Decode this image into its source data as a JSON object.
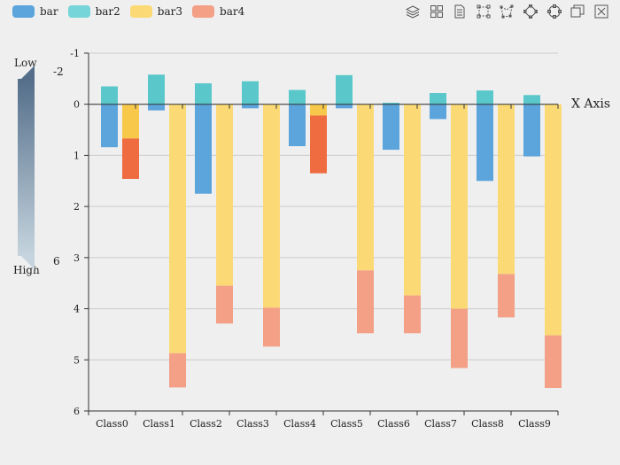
{
  "legend": [
    {
      "name": "bar",
      "color": "#5ba4dc"
    },
    {
      "name": "bar2",
      "color": "#76d5d8"
    },
    {
      "name": "bar3",
      "color": "#fbda75"
    },
    {
      "name": "bar4",
      "color": "#f3a087"
    }
  ],
  "toolbox": [
    "stack-icon",
    "tiled-icon",
    "data-view-icon",
    "rect-select-icon",
    "polygon-select-icon",
    "keep-select-icon",
    "clear-select-icon",
    "restore-icon",
    "close-icon"
  ],
  "visual_map": {
    "low_label": "Low",
    "high_label": "High",
    "min_text": "-2",
    "max_text": "6",
    "color_top": "#546e8a",
    "color_bottom": "#c5d4de"
  },
  "chart_data": {
    "type": "bar",
    "xlabel": "X Axis",
    "ylabel": "",
    "ylim": [
      -1,
      6
    ],
    "y_inverse": true,
    "categories": [
      "Class0",
      "Class1",
      "Class2",
      "Class3",
      "Class4",
      "Class5",
      "Class6",
      "Class7",
      "Class8",
      "Class9"
    ],
    "series": [
      {
        "name": "bar",
        "stack": "one",
        "color": "#5ba4dc",
        "values": [
          0.84,
          0.12,
          1.75,
          0.08,
          0.82,
          0.08,
          0.89,
          0.29,
          1.5,
          1.02
        ]
      },
      {
        "name": "bar2",
        "stack": "one",
        "color": "#5ac8cb",
        "values": [
          -0.35,
          -0.58,
          -0.41,
          -0.45,
          -0.28,
          -0.57,
          -0.03,
          -0.22,
          -0.27,
          -0.18
        ]
      },
      {
        "name": "bar3",
        "stack": "two",
        "color": "#fbda75",
        "values": [
          0.67,
          4.87,
          3.55,
          3.98,
          0.22,
          3.25,
          3.74,
          4.0,
          3.32,
          4.52
        ]
      },
      {
        "name": "bar4",
        "stack": "two",
        "color": "#f3a087",
        "values": [
          0.79,
          0.67,
          0.74,
          0.76,
          1.13,
          1.23,
          0.74,
          1.16,
          0.85,
          1.03
        ]
      }
    ],
    "highlight": {
      "Class0": {
        "bar3": "#f7c84a",
        "bar4": "#ef6b40"
      },
      "Class4": {
        "bar3": "#f7c84a",
        "bar4": "#ef6b40"
      }
    }
  }
}
